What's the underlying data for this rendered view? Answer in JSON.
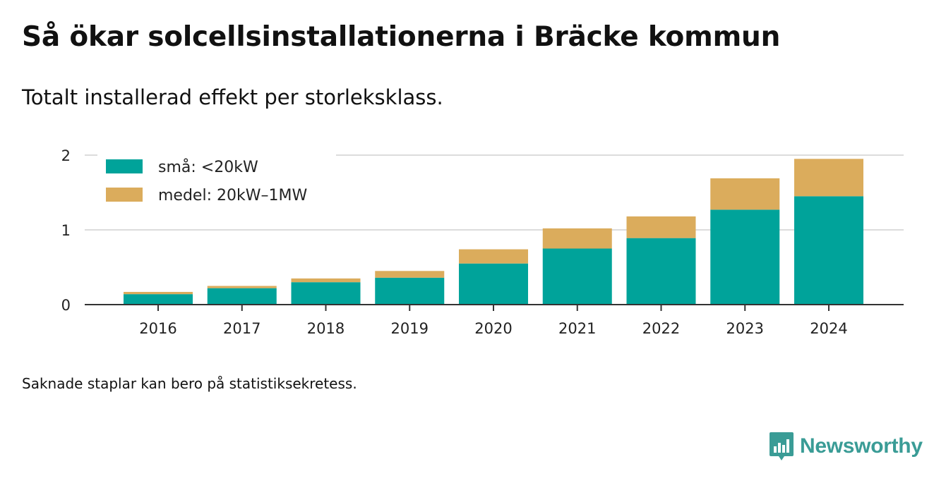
{
  "header": {
    "title": "Så ökar solcellsinstallationerna i Bräcke kommun",
    "subtitle": "Totalt installerad effekt per storleksklass."
  },
  "footer": {
    "note": "Saknade staplar kan bero på statistiksekretess.",
    "brand": "Newsworthy",
    "logo_icon": "newsworthy-logo-icon"
  },
  "chart_data": {
    "type": "bar",
    "stacked": true,
    "categories": [
      "2016",
      "2017",
      "2018",
      "2019",
      "2020",
      "2021",
      "2022",
      "2023",
      "2024"
    ],
    "series": [
      {
        "name": "små: <20kW",
        "color": "#00a39a",
        "values": [
          0.14,
          0.22,
          0.3,
          0.36,
          0.55,
          0.75,
          0.89,
          1.27,
          1.45
        ]
      },
      {
        "name": "medel: 20kW–1MW",
        "color": "#dbac5c",
        "values": [
          0.03,
          0.03,
          0.05,
          0.09,
          0.19,
          0.27,
          0.29,
          0.42,
          0.5
        ]
      }
    ],
    "ylim": [
      0,
      2
    ],
    "yticks": [
      0,
      1,
      2
    ],
    "grid": true,
    "legend": "top-left",
    "xlabel": "",
    "ylabel": ""
  }
}
